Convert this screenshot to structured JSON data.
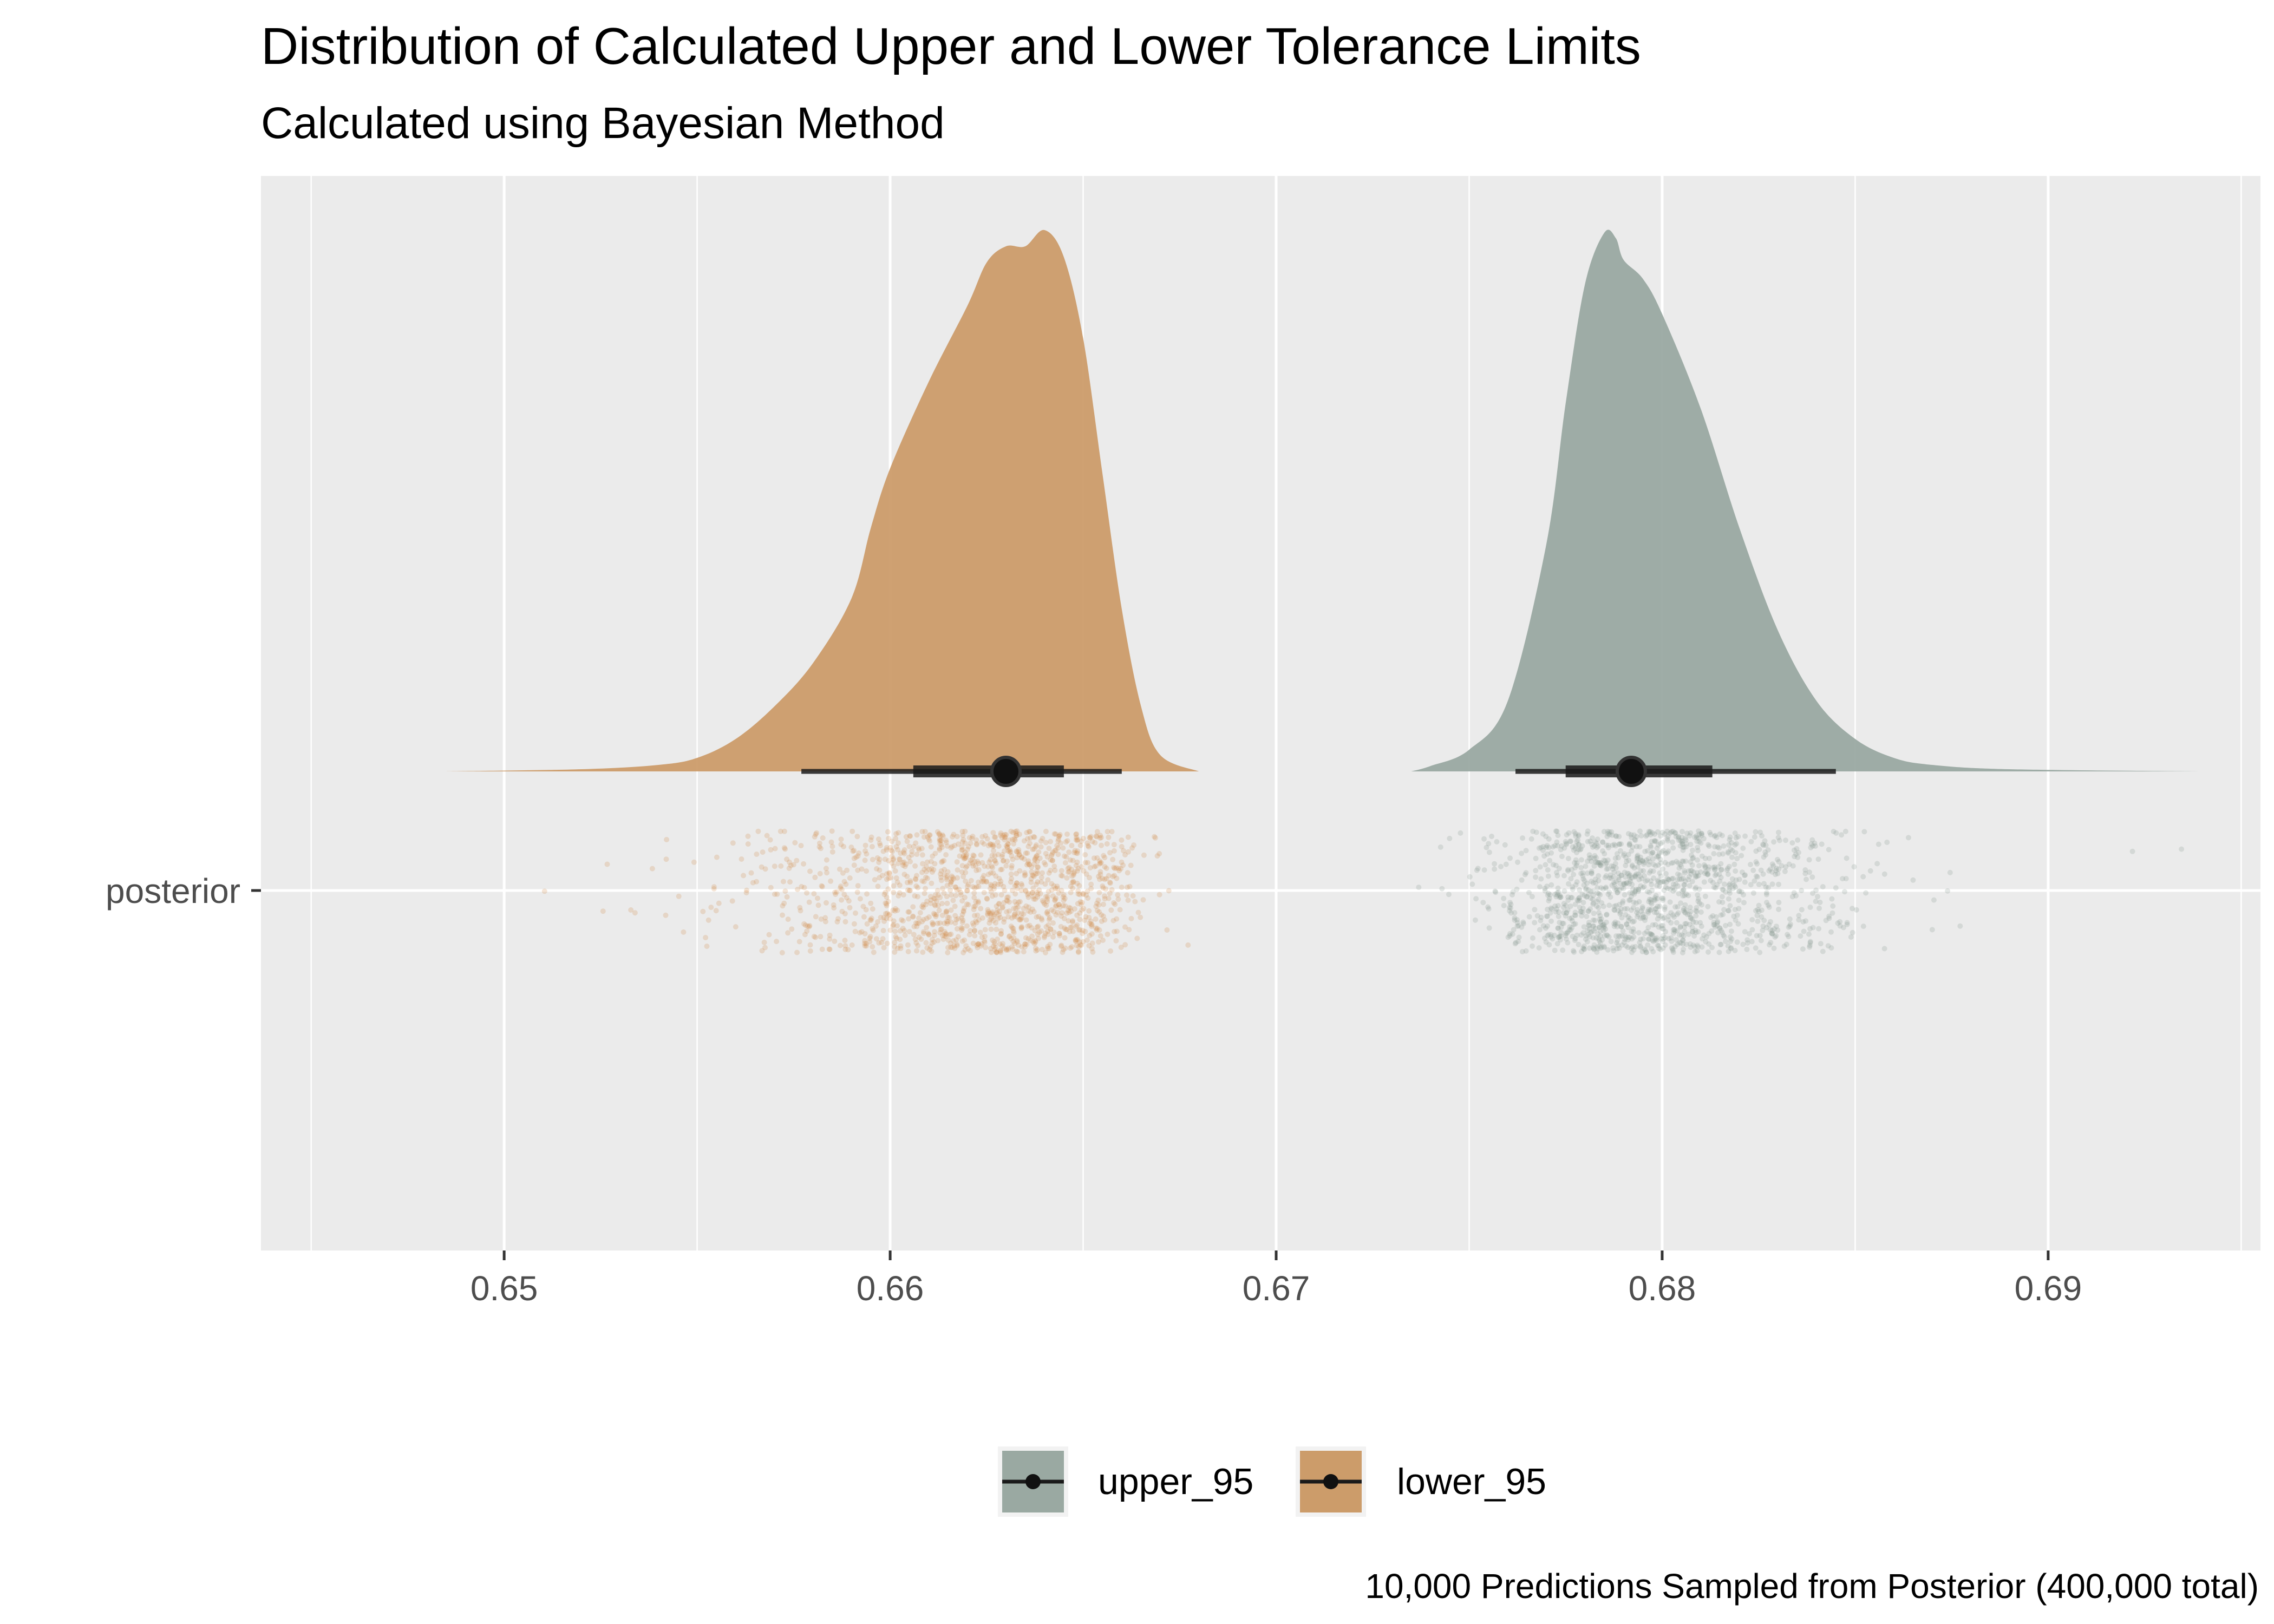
{
  "chart_data": {
    "type": "halfeye_density",
    "title": "Distribution of Calculated Upper and Lower Tolerance Limits",
    "subtitle": "Calculated using Bayesian Method",
    "caption": "10,000 Predictions Sampled from Posterior (400,000 total)",
    "xlabel": "",
    "ylabel": "",
    "xlim": [
      0.6437,
      0.6955
    ],
    "x_ticks": [
      0.65,
      0.66,
      0.67,
      0.68,
      0.69
    ],
    "x_tick_labels": [
      "0.65",
      "0.66",
      "0.67",
      "0.68",
      "0.69"
    ],
    "y_categories": [
      "posterior"
    ],
    "grid": true,
    "legend_position": "bottom",
    "series": [
      {
        "name": "upper_95",
        "color": "#9aa9a2",
        "point_color": "#86978f",
        "median": 0.6792,
        "interval_66": [
          0.6775,
          0.6813
        ],
        "interval_95": [
          0.6762,
          0.6845
        ],
        "density": {
          "x": [
            0.6735,
            0.674,
            0.675,
            0.676,
            0.677,
            0.6775,
            0.678,
            0.6785,
            0.6788,
            0.679,
            0.6795,
            0.68,
            0.681,
            0.682,
            0.683,
            0.684,
            0.685,
            0.686,
            0.687,
            0.689,
            0.694
          ],
          "y": [
            0.0,
            0.01,
            0.04,
            0.13,
            0.42,
            0.68,
            0.9,
            0.995,
            0.985,
            0.945,
            0.91,
            0.845,
            0.67,
            0.45,
            0.26,
            0.13,
            0.06,
            0.025,
            0.012,
            0.004,
            0.0
          ]
        }
      },
      {
        "name": "lower_95",
        "color": "#cc9c6a",
        "point_color": "#d08a45",
        "median": 0.663,
        "interval_66": [
          0.6606,
          0.6645
        ],
        "interval_95": [
          0.6577,
          0.666
        ],
        "density": {
          "x": [
            0.6485,
            0.652,
            0.654,
            0.655,
            0.656,
            0.657,
            0.658,
            0.659,
            0.6595,
            0.66,
            0.661,
            0.662,
            0.6625,
            0.663,
            0.6635,
            0.664,
            0.6645,
            0.665,
            0.6655,
            0.666,
            0.6665,
            0.667,
            0.668
          ],
          "y": [
            0.0,
            0.004,
            0.012,
            0.025,
            0.06,
            0.12,
            0.2,
            0.32,
            0.45,
            0.56,
            0.72,
            0.86,
            0.94,
            0.97,
            0.97,
            1.0,
            0.95,
            0.8,
            0.55,
            0.3,
            0.12,
            0.03,
            0.0
          ]
        }
      }
    ]
  }
}
